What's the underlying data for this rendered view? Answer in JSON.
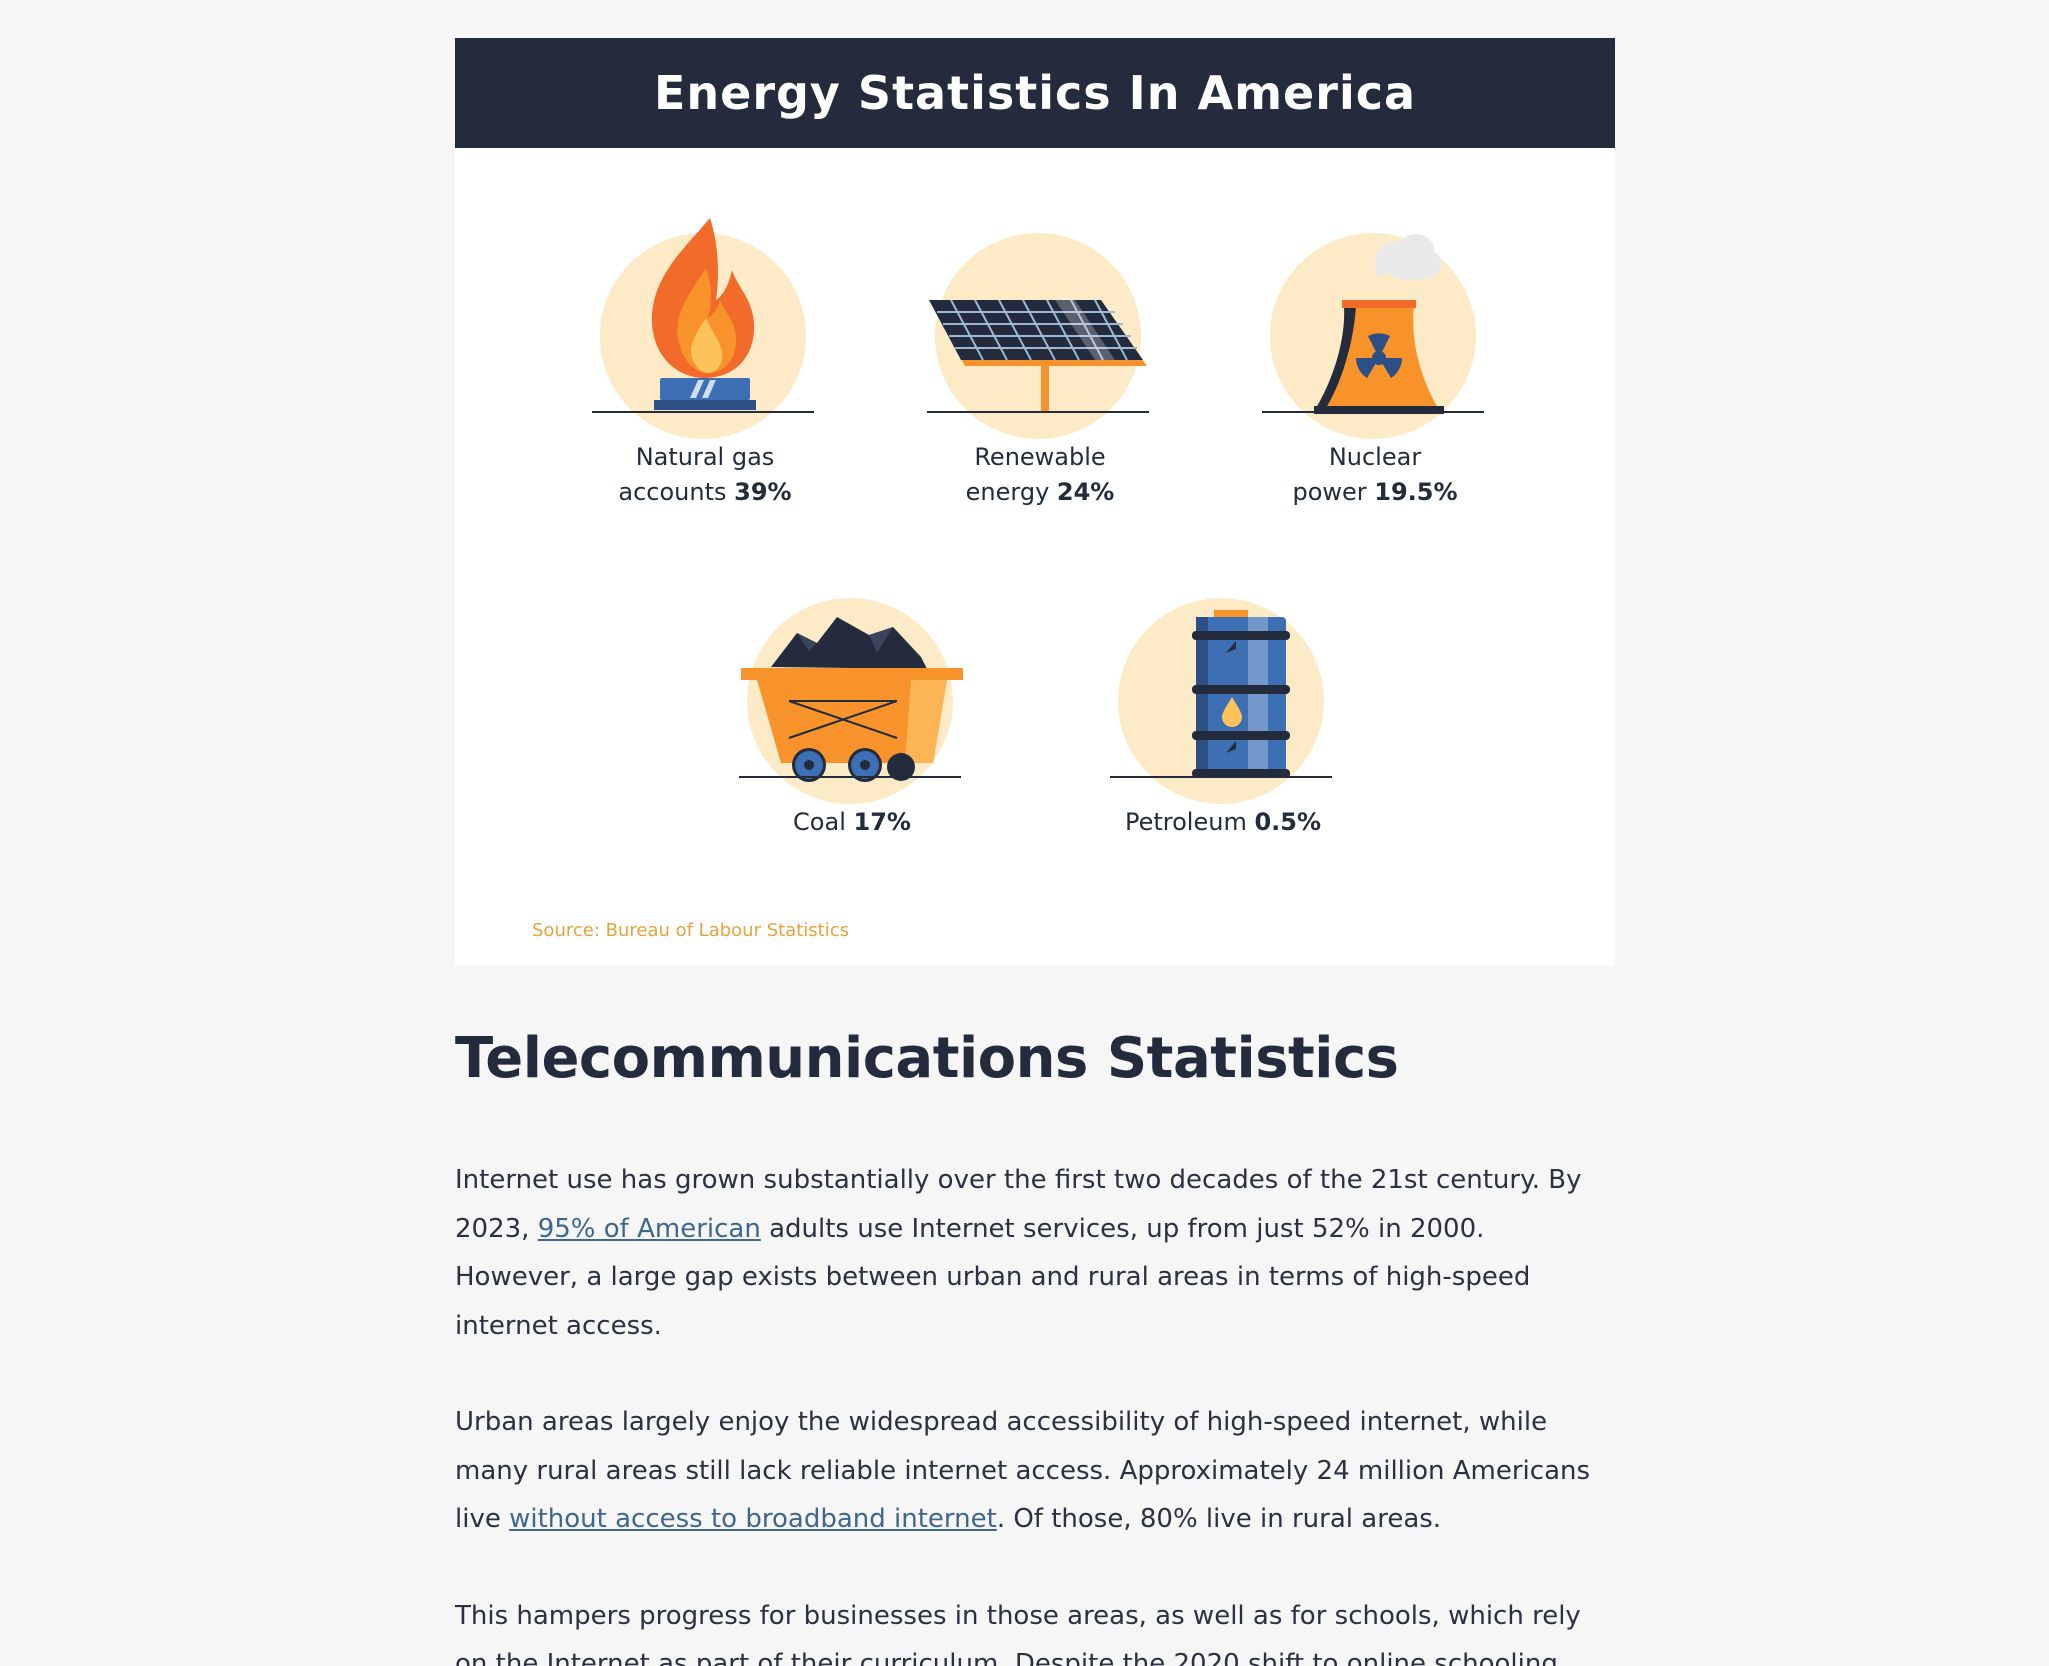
{
  "infographic": {
    "title": "Energy Statistics In America",
    "source": "Source: Bureau of Labour Statistics",
    "stats": [
      {
        "icon": "gas-flame-icon",
        "line1": "Natural gas",
        "line2_prefix": "accounts ",
        "value": "39%"
      },
      {
        "icon": "solar-panel-icon",
        "line1": "Renewable",
        "line2_prefix": "energy ",
        "value": "24%"
      },
      {
        "icon": "nuclear-cooling-tower-icon",
        "line1": "Nuclear",
        "line2_prefix": "power ",
        "value": "19.5%"
      },
      {
        "icon": "coal-cart-icon",
        "line1": "",
        "line2_prefix": "Coal ",
        "value": "17%"
      },
      {
        "icon": "oil-barrel-icon",
        "line1": "",
        "line2_prefix": "Petroleum ",
        "value": "0.5%"
      }
    ],
    "colors": {
      "header_bg": "#232b3d",
      "accent_orange": "#f7932a",
      "disc": "#fdebc8",
      "source_text": "#e8a23c"
    }
  },
  "article": {
    "heading": "Telecommunications Statistics",
    "p1": {
      "before": "Internet use has grown substantially over the first two decades of the 21st century. By 2023, ",
      "link": "95% of American",
      "after": " adults use Internet services, up from just 52% in 2000. However, a large gap exists between urban and rural areas in terms of high-speed internet access."
    },
    "p2": {
      "before": "Urban areas largely enjoy the widespread accessibility of high-speed internet, while many rural areas still lack reliable internet access. Approximately 24 million Americans live ",
      "link": "without access to broadband internet",
      "after": ". Of those, 80% live in rural areas."
    },
    "p3": {
      "text": "This hampers progress for businesses in those areas, as well as for schools, which rely on the Internet as part of their curriculum. Despite the 2020 shift to online schooling,"
    },
    "link_color": "#3f6691"
  }
}
